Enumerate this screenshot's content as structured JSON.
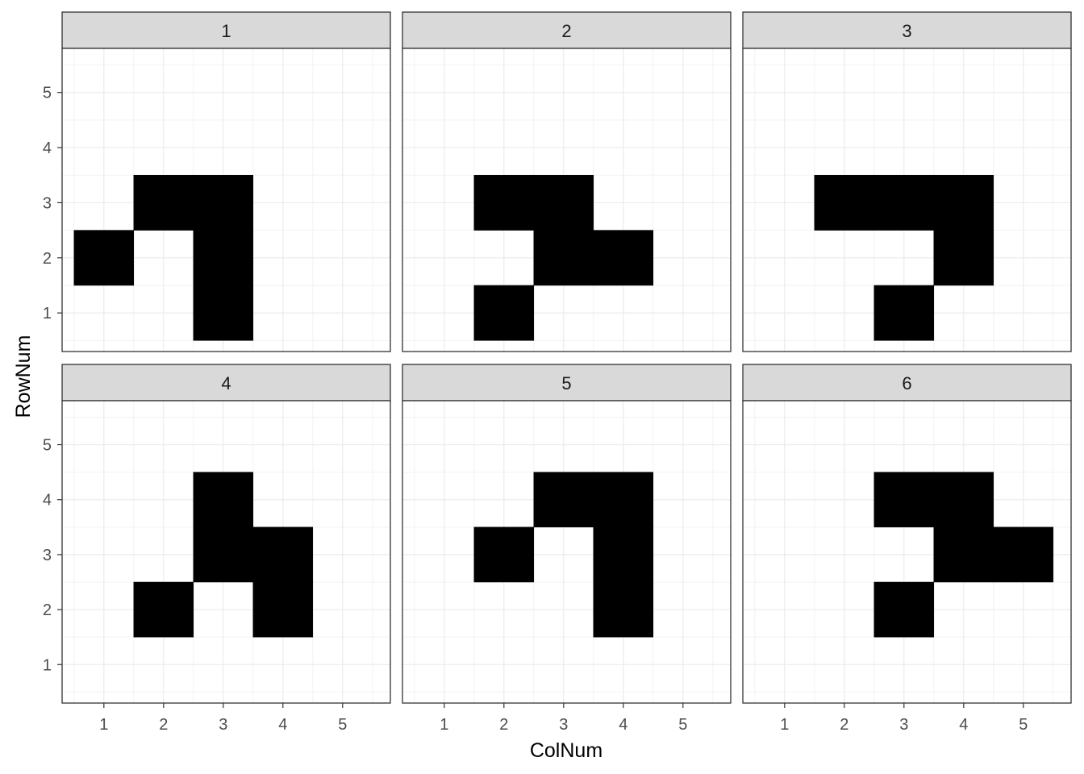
{
  "chart_data": {
    "type": "heatmap",
    "xlabel": "ColNum",
    "ylabel": "RowNum",
    "x_ticks": [
      1,
      2,
      3,
      4,
      5
    ],
    "y_ticks": [
      1,
      2,
      3,
      4,
      5
    ],
    "xlim": [
      0.3,
      5.8
    ],
    "ylim": [
      0.3,
      5.8
    ],
    "grid": true,
    "fill_color": "#000000",
    "strip_color": "#d9d9d9",
    "panels": [
      {
        "label": "1",
        "cells": [
          [
            1,
            2
          ],
          [
            2,
            3
          ],
          [
            3,
            3
          ],
          [
            3,
            2
          ],
          [
            3,
            1
          ]
        ]
      },
      {
        "label": "2",
        "cells": [
          [
            2,
            3
          ],
          [
            3,
            3
          ],
          [
            3,
            2
          ],
          [
            4,
            2
          ],
          [
            2,
            1
          ]
        ]
      },
      {
        "label": "3",
        "cells": [
          [
            2,
            3
          ],
          [
            3,
            3
          ],
          [
            4,
            3
          ],
          [
            4,
            2
          ],
          [
            3,
            1
          ]
        ]
      },
      {
        "label": "4",
        "cells": [
          [
            3,
            4
          ],
          [
            3,
            3
          ],
          [
            4,
            3
          ],
          [
            2,
            2
          ],
          [
            4,
            2
          ]
        ]
      },
      {
        "label": "5",
        "cells": [
          [
            3,
            4
          ],
          [
            4,
            4
          ],
          [
            2,
            3
          ],
          [
            4,
            3
          ],
          [
            4,
            2
          ]
        ]
      },
      {
        "label": "6",
        "cells": [
          [
            3,
            4
          ],
          [
            4,
            4
          ],
          [
            4,
            3
          ],
          [
            5,
            3
          ],
          [
            3,
            2
          ]
        ]
      }
    ]
  }
}
